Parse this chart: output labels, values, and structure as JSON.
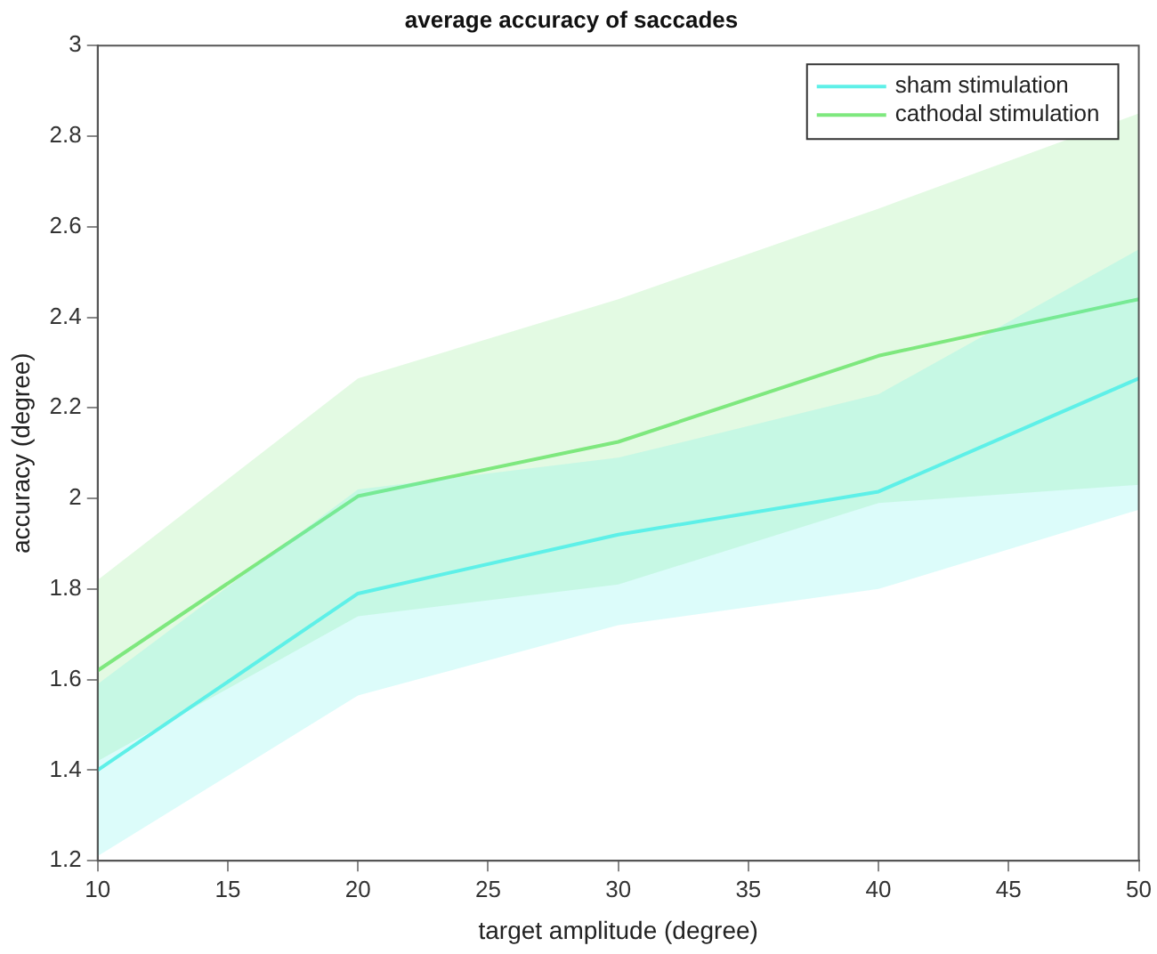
{
  "chart_data": {
    "type": "line",
    "title": "average accuracy of saccades",
    "xlabel": "target amplitude (degree)",
    "ylabel": "accuracy (degree)",
    "x": [
      10,
      20,
      30,
      40,
      50
    ],
    "series": [
      {
        "name": "sham stimulation",
        "color": "#5ef0e8",
        "values": [
          1.4,
          1.79,
          1.92,
          2.015,
          2.265
        ],
        "lower": [
          1.21,
          1.565,
          1.72,
          1.8,
          1.975
        ],
        "upper": [
          1.59,
          2.02,
          2.09,
          2.23,
          2.55
        ]
      },
      {
        "name": "cathodal stimulation",
        "color": "#7ee87e",
        "values": [
          1.62,
          2.005,
          2.125,
          2.315,
          2.44
        ],
        "lower": [
          1.42,
          1.74,
          1.81,
          1.99,
          2.03
        ],
        "upper": [
          1.82,
          2.265,
          2.44,
          2.64,
          2.85
        ]
      }
    ],
    "xlim": [
      10,
      50
    ],
    "xticks": [
      10,
      15,
      20,
      25,
      30,
      35,
      40,
      45,
      50
    ],
    "ylim": [
      1.2,
      3
    ],
    "yticks": [
      1.2,
      1.4,
      1.6,
      1.8,
      2,
      2.2,
      2.4,
      2.6,
      2.8,
      3
    ],
    "grid": false,
    "legend": "top right",
    "marker": "none",
    "line_style": "solid"
  }
}
